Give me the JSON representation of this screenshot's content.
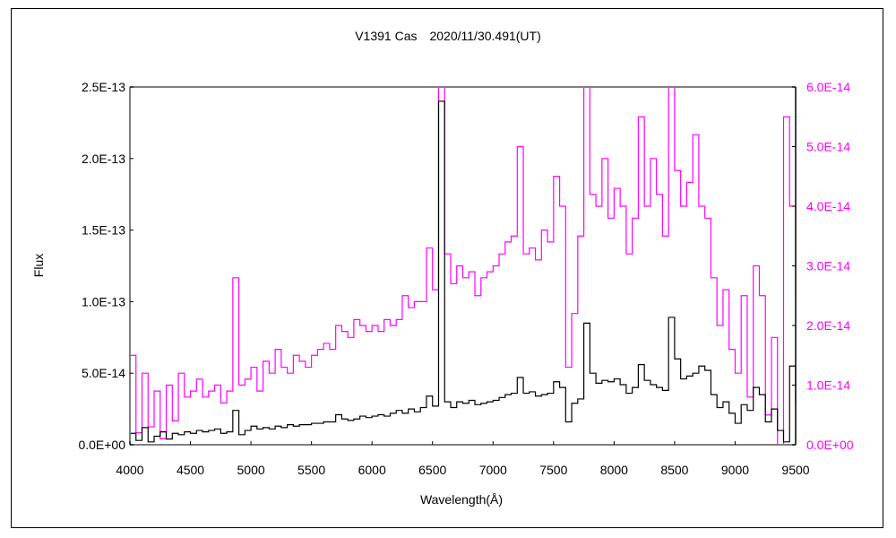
{
  "chart_data": {
    "type": "line",
    "title": "V1391 Cas　2020/11/30.491(UT)",
    "xlabel": "Wavelength(Å)",
    "ylabel": "Flux",
    "xlim": [
      4000,
      9500
    ],
    "ylim": [
      0,
      2.5e-13
    ],
    "y2lim": [
      0,
      6e-14
    ],
    "x_ticks": [
      "4000",
      "4500",
      "5000",
      "5500",
      "6000",
      "6500",
      "7000",
      "7500",
      "8000",
      "8500",
      "9000",
      "9500"
    ],
    "y_ticks": [
      "0.0E+00",
      "5.0E-14",
      "1.0E-13",
      "1.5E-13",
      "2.0E-13",
      "2.5E-13"
    ],
    "y2_ticks": [
      "0.0E+00",
      "1.0E-14",
      "2.0E-14",
      "3.0E-14",
      "4.0E-14",
      "5.0E-14",
      "6.0E-14"
    ],
    "grid": false,
    "colors": {
      "left_axis_series": "#000000",
      "right_axis_series": "#ff00ff",
      "right_axis_labels": "#ff00ff"
    },
    "x": [
      4000,
      4050,
      4100,
      4150,
      4200,
      4250,
      4300,
      4350,
      4400,
      4450,
      4500,
      4550,
      4600,
      4650,
      4700,
      4750,
      4800,
      4850,
      4900,
      4950,
      5000,
      5050,
      5100,
      5150,
      5200,
      5250,
      5300,
      5350,
      5400,
      5450,
      5500,
      5550,
      5600,
      5650,
      5700,
      5750,
      5800,
      5850,
      5900,
      5950,
      6000,
      6050,
      6100,
      6150,
      6200,
      6250,
      6300,
      6350,
      6400,
      6450,
      6500,
      6550,
      6600,
      6650,
      6700,
      6750,
      6800,
      6850,
      6900,
      6950,
      7000,
      7050,
      7100,
      7150,
      7200,
      7250,
      7300,
      7350,
      7400,
      7450,
      7500,
      7550,
      7600,
      7650,
      7700,
      7750,
      7800,
      7850,
      7900,
      7950,
      8000,
      8050,
      8100,
      8150,
      8200,
      8250,
      8300,
      8350,
      8400,
      8450,
      8500,
      8550,
      8600,
      8650,
      8700,
      8750,
      8800,
      8850,
      8900,
      8950,
      9000,
      9050,
      9100,
      9150,
      9200,
      9250,
      9300,
      9350,
      9400,
      9450,
      9500
    ],
    "series": [
      {
        "axis": "left",
        "color": "#000000",
        "values": [
          8e-15,
          3e-15,
          1.2e-14,
          2e-15,
          6e-15,
          9e-15,
          4e-15,
          8e-15,
          7e-15,
          9e-15,
          8e-15,
          1e-14,
          9e-15,
          1e-14,
          1.1e-14,
          8e-15,
          9e-15,
          2.4e-14,
          7e-15,
          1e-14,
          1.3e-14,
          1.1e-14,
          1.2e-14,
          1.1e-14,
          1.3e-14,
          1.2e-14,
          1.4e-14,
          1.3e-14,
          1.4e-14,
          1.4e-14,
          1.5e-14,
          1.5e-14,
          1.6e-14,
          1.6e-14,
          2.1e-14,
          1.8e-14,
          1.7e-14,
          1.8e-14,
          2e-14,
          1.9e-14,
          2e-14,
          2.1e-14,
          2e-14,
          2.2e-14,
          2.4e-14,
          2.2e-14,
          2.5e-14,
          2.3e-14,
          2.6e-14,
          3.4e-14,
          2.7e-14,
          2.4e-13,
          3e-14,
          2.6e-14,
          3e-14,
          2.9e-14,
          3.1e-14,
          2.8e-14,
          2.9e-14,
          3e-14,
          3.1e-14,
          3.3e-14,
          3.5e-14,
          3.6e-14,
          4.7e-14,
          3.6e-14,
          3.7e-14,
          3.4e-14,
          3.5e-14,
          3.6e-14,
          4.4e-14,
          4e-14,
          1.6e-14,
          2.9e-14,
          3.2e-14,
          8.5e-14,
          5e-14,
          4.3e-14,
          4.5e-14,
          4.4e-14,
          4.6e-14,
          4.2e-14,
          3.6e-14,
          4e-14,
          5.6e-14,
          4.5e-14,
          4.2e-14,
          4e-14,
          3.8e-14,
          8.9e-14,
          6e-14,
          4.6e-14,
          4.8e-14,
          5e-14,
          5.5e-14,
          5.2e-14,
          3.5e-14,
          2.6e-14,
          3e-14,
          2.2e-14,
          1.5e-14,
          2.8e-14,
          2.4e-14,
          4e-14,
          3.5e-14,
          1.6e-14,
          2.5e-14,
          1e-14,
          2e-15,
          5.5e-14,
          3e-14
        ]
      },
      {
        "axis": "right",
        "color": "#ff00ff",
        "values": [
          1.5e-14,
          2e-15,
          1.2e-14,
          3e-15,
          9e-15,
          1e-15,
          1e-14,
          4e-15,
          1.2e-14,
          8e-15,
          9e-15,
          1.1e-14,
          8e-15,
          9e-15,
          1e-14,
          7e-15,
          9e-15,
          2.8e-14,
          1e-14,
          1.1e-14,
          1.3e-14,
          9e-15,
          1.4e-14,
          1.2e-14,
          1.6e-14,
          1.3e-14,
          1.2e-14,
          1.5e-14,
          1.4e-14,
          1.3e-14,
          1.5e-14,
          1.6e-14,
          1.7e-14,
          1.6e-14,
          2e-14,
          1.9e-14,
          1.8e-14,
          2.1e-14,
          2e-14,
          1.9e-14,
          2e-14,
          1.9e-14,
          2.1e-14,
          2e-14,
          2.1e-14,
          2.5e-14,
          2.3e-14,
          2.4e-14,
          2.4e-14,
          3.3e-14,
          2.6e-14,
          6.5e-14,
          3.2e-14,
          2.7e-14,
          3e-14,
          2.8e-14,
          2.9e-14,
          2.5e-14,
          2.8e-14,
          2.9e-14,
          3e-14,
          3.2e-14,
          3.4e-14,
          3.5e-14,
          5e-14,
          3.2e-14,
          3.3e-14,
          3.1e-14,
          3.6e-14,
          3.4e-14,
          4.5e-14,
          4e-14,
          1.3e-14,
          2.2e-14,
          3.5e-14,
          6.5e-14,
          4.2e-14,
          4e-14,
          4.8e-14,
          3.8e-14,
          4.3e-14,
          4e-14,
          3.2e-14,
          3.8e-14,
          5.5e-14,
          4e-14,
          4.8e-14,
          4.2e-14,
          3.5e-14,
          6.5e-14,
          4.6e-14,
          4e-14,
          4.4e-14,
          5.2e-14,
          4e-14,
          3.8e-14,
          2.8e-14,
          2e-14,
          2.6e-14,
          1.6e-14,
          1.2e-14,
          2.5e-14,
          8e-15,
          3e-14,
          2.5e-14,
          5e-15,
          1.8e-14,
          0.0,
          5.5e-14,
          4e-14,
          2.5e-14
        ]
      }
    ]
  }
}
